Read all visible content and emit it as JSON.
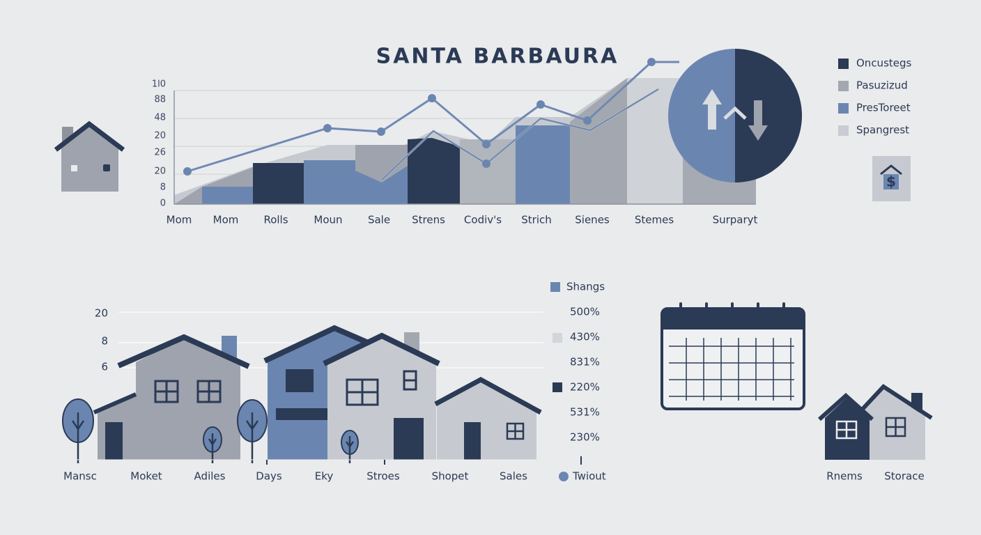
{
  "title": "SANTA BARBAURA",
  "top_chart": {
    "y_labels": [
      "1l0",
      "88",
      "48",
      "20",
      "26",
      "20",
      "8",
      "0"
    ],
    "categories": [
      "Mom",
      "Mom",
      "Rolls",
      "Moun",
      "Sale",
      "Strens",
      "Codiv's",
      "Strich",
      "Sienes",
      "Stemes",
      "Surparyt"
    ],
    "legend": [
      "Oncustegs",
      "Pasuzizud",
      "PresToreet",
      "Spangrest"
    ]
  },
  "bottom_chart": {
    "y_labels": [
      "20",
      "8",
      "6"
    ],
    "categories": [
      "Mansc",
      "Moket",
      "Adiles",
      "Days",
      "Eky",
      "Stroes",
      "Shopet",
      "Sales"
    ],
    "legend_title": "Shangs",
    "percentages": [
      "500%",
      "430%",
      "831%",
      "220%",
      "531%",
      "230%"
    ],
    "legend_footer": "Twiout"
  },
  "storage": {
    "labels": [
      "Rnems",
      "Storace"
    ]
  }
}
